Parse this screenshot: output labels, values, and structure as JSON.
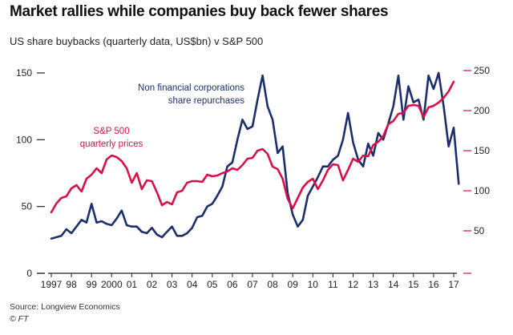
{
  "header": {
    "title": "Market rallies while companies buy back fewer shares",
    "subtitle": "US share buybacks (quarterly data, US$bn) v S&P 500"
  },
  "footer": {
    "source": "Source: Longview Economics",
    "brand": "© FT"
  },
  "colors": {
    "buybacks": "#1c2f6b",
    "sp500": "#d6114a",
    "axis": "#222222"
  },
  "chart_data": {
    "type": "line",
    "title": "Market rallies while companies buy back fewer shares",
    "subtitle": "US share buybacks (quarterly data, US$bn) v S&P 500",
    "x_ticks": [
      {
        "x": 1997.0,
        "label": "1997"
      },
      {
        "x": 1998.0,
        "label": "98"
      },
      {
        "x": 1999.0,
        "label": "99"
      },
      {
        "x": 2000.0,
        "label": "2000"
      },
      {
        "x": 2001.0,
        "label": "01"
      },
      {
        "x": 2002.0,
        "label": "02"
      },
      {
        "x": 2003.0,
        "label": "03"
      },
      {
        "x": 2004.0,
        "label": "04"
      },
      {
        "x": 2005.0,
        "label": "05"
      },
      {
        "x": 2006.0,
        "label": "06"
      },
      {
        "x": 2007.0,
        "label": "07"
      },
      {
        "x": 2008.0,
        "label": "08"
      },
      {
        "x": 2009.0,
        "label": "09"
      },
      {
        "x": 2010.0,
        "label": "10"
      },
      {
        "x": 2011.0,
        "label": "11"
      },
      {
        "x": 2012.0,
        "label": "12"
      },
      {
        "x": 2013.0,
        "label": "13"
      },
      {
        "x": 2014.0,
        "label": "14"
      },
      {
        "x": 2015.0,
        "label": "15"
      },
      {
        "x": 2016.0,
        "label": "16"
      },
      {
        "x": 2017.0,
        "label": "17"
      }
    ],
    "xlim": [
      1997.0,
      2017.0
    ],
    "left_axis": {
      "ticks": [
        0,
        50,
        100,
        150
      ],
      "ylim": [
        0,
        150
      ]
    },
    "right_axis": {
      "ticks": [
        50,
        100,
        150,
        200,
        250
      ],
      "ylim": [
        0,
        250
      ]
    },
    "series": [
      {
        "name": "Non financial corporations share repurchases",
        "axis": "left",
        "color": "#1c2f6b",
        "points": [
          [
            1997.0,
            26
          ],
          [
            1997.25,
            27
          ],
          [
            1997.5,
            28
          ],
          [
            1997.75,
            33
          ],
          [
            1998.0,
            30
          ],
          [
            1998.25,
            35
          ],
          [
            1998.5,
            40
          ],
          [
            1998.75,
            38
          ],
          [
            1999.0,
            52
          ],
          [
            1999.25,
            38
          ],
          [
            1999.5,
            39
          ],
          [
            1999.75,
            37
          ],
          [
            2000.0,
            36
          ],
          [
            2000.25,
            41
          ],
          [
            2000.5,
            47
          ],
          [
            2000.75,
            36
          ],
          [
            2001.0,
            35
          ],
          [
            2001.25,
            35
          ],
          [
            2001.5,
            31
          ],
          [
            2001.75,
            30
          ],
          [
            2002.0,
            34
          ],
          [
            2002.25,
            29
          ],
          [
            2002.5,
            27
          ],
          [
            2002.75,
            31
          ],
          [
            2003.0,
            35
          ],
          [
            2003.25,
            28
          ],
          [
            2003.5,
            28
          ],
          [
            2003.75,
            30
          ],
          [
            2004.0,
            34
          ],
          [
            2004.25,
            42
          ],
          [
            2004.5,
            43
          ],
          [
            2004.75,
            50
          ],
          [
            2005.0,
            52
          ],
          [
            2005.25,
            58
          ],
          [
            2005.5,
            65
          ],
          [
            2005.75,
            80
          ],
          [
            2006.0,
            83
          ],
          [
            2006.25,
            100
          ],
          [
            2006.5,
            115
          ],
          [
            2006.75,
            108
          ],
          [
            2007.0,
            110
          ],
          [
            2007.25,
            130
          ],
          [
            2007.5,
            148
          ],
          [
            2007.75,
            125
          ],
          [
            2008.0,
            115
          ],
          [
            2008.25,
            90
          ],
          [
            2008.5,
            95
          ],
          [
            2008.75,
            60
          ],
          [
            2009.0,
            44
          ],
          [
            2009.25,
            35
          ],
          [
            2009.5,
            40
          ],
          [
            2009.75,
            58
          ],
          [
            2010.0,
            65
          ],
          [
            2010.25,
            72
          ],
          [
            2010.5,
            80
          ],
          [
            2010.75,
            80
          ],
          [
            2011.0,
            85
          ],
          [
            2011.25,
            88
          ],
          [
            2011.5,
            100
          ],
          [
            2011.75,
            120
          ],
          [
            2012.0,
            98
          ],
          [
            2012.25,
            85
          ],
          [
            2012.5,
            80
          ],
          [
            2012.75,
            97
          ],
          [
            2013.0,
            88
          ],
          [
            2013.25,
            105
          ],
          [
            2013.5,
            100
          ],
          [
            2013.75,
            112
          ],
          [
            2014.0,
            125
          ],
          [
            2014.25,
            148
          ],
          [
            2014.5,
            115
          ],
          [
            2014.75,
            140
          ],
          [
            2015.0,
            128
          ],
          [
            2015.25,
            130
          ],
          [
            2015.5,
            115
          ],
          [
            2015.75,
            148
          ],
          [
            2016.0,
            138
          ],
          [
            2016.25,
            150
          ],
          [
            2016.5,
            125
          ],
          [
            2016.75,
            95
          ],
          [
            2017.0,
            109
          ],
          [
            2017.25,
            67
          ]
        ]
      },
      {
        "name": "S&P 500 quarterly prices",
        "axis": "right",
        "color": "#d6114a",
        "points": [
          [
            1997.0,
            73
          ],
          [
            1997.25,
            84
          ],
          [
            1997.5,
            91
          ],
          [
            1997.75,
            93
          ],
          [
            1998.0,
            103
          ],
          [
            1998.25,
            107
          ],
          [
            1998.5,
            99
          ],
          [
            1998.75,
            115
          ],
          [
            1999.0,
            120
          ],
          [
            1999.25,
            128
          ],
          [
            1999.5,
            122
          ],
          [
            1999.75,
            139
          ],
          [
            2000.0,
            144
          ],
          [
            2000.25,
            142
          ],
          [
            2000.5,
            137
          ],
          [
            2000.75,
            128
          ],
          [
            2001.0,
            110
          ],
          [
            2001.25,
            122
          ],
          [
            2001.5,
            102
          ],
          [
            2001.75,
            113
          ],
          [
            2002.0,
            112
          ],
          [
            2002.25,
            98
          ],
          [
            2002.5,
            82
          ],
          [
            2002.75,
            86
          ],
          [
            2003.0,
            83
          ],
          [
            2003.25,
            98
          ],
          [
            2003.5,
            100
          ],
          [
            2003.75,
            110
          ],
          [
            2004.0,
            112
          ],
          [
            2004.25,
            112
          ],
          [
            2004.5,
            111
          ],
          [
            2004.75,
            120
          ],
          [
            2005.0,
            118
          ],
          [
            2005.25,
            119
          ],
          [
            2005.5,
            122
          ],
          [
            2005.75,
            124
          ],
          [
            2006.0,
            128
          ],
          [
            2006.25,
            126
          ],
          [
            2006.5,
            132
          ],
          [
            2006.75,
            140
          ],
          [
            2007.0,
            141
          ],
          [
            2007.25,
            150
          ],
          [
            2007.5,
            152
          ],
          [
            2007.75,
            146
          ],
          [
            2008.0,
            130
          ],
          [
            2008.25,
            127
          ],
          [
            2008.5,
            115
          ],
          [
            2008.75,
            90
          ],
          [
            2009.0,
            78
          ],
          [
            2009.25,
            91
          ],
          [
            2009.5,
            104
          ],
          [
            2009.75,
            111
          ],
          [
            2010.0,
            115
          ],
          [
            2010.25,
            102
          ],
          [
            2010.5,
            113
          ],
          [
            2010.75,
            126
          ],
          [
            2011.0,
            133
          ],
          [
            2011.25,
            132
          ],
          [
            2011.5,
            113
          ],
          [
            2011.75,
            126
          ],
          [
            2012.0,
            140
          ],
          [
            2012.25,
            136
          ],
          [
            2012.5,
            144
          ],
          [
            2012.75,
            143
          ],
          [
            2013.0,
            157
          ],
          [
            2013.25,
            161
          ],
          [
            2013.5,
            168
          ],
          [
            2013.75,
            183
          ],
          [
            2014.0,
            187
          ],
          [
            2014.25,
            196
          ],
          [
            2014.5,
            197
          ],
          [
            2014.75,
            206
          ],
          [
            2015.0,
            207
          ],
          [
            2015.25,
            206
          ],
          [
            2015.5,
            192
          ],
          [
            2015.75,
            204
          ],
          [
            2016.0,
            206
          ],
          [
            2016.25,
            210
          ],
          [
            2016.5,
            216
          ],
          [
            2016.75,
            224
          ],
          [
            2017.0,
            236
          ]
        ]
      }
    ],
    "annotations": [
      {
        "series": 0,
        "lines": [
          "Non financial corporations",
          "share repurchases"
        ]
      },
      {
        "series": 1,
        "lines": [
          "S&P 500",
          "quarterly prices"
        ]
      }
    ]
  }
}
